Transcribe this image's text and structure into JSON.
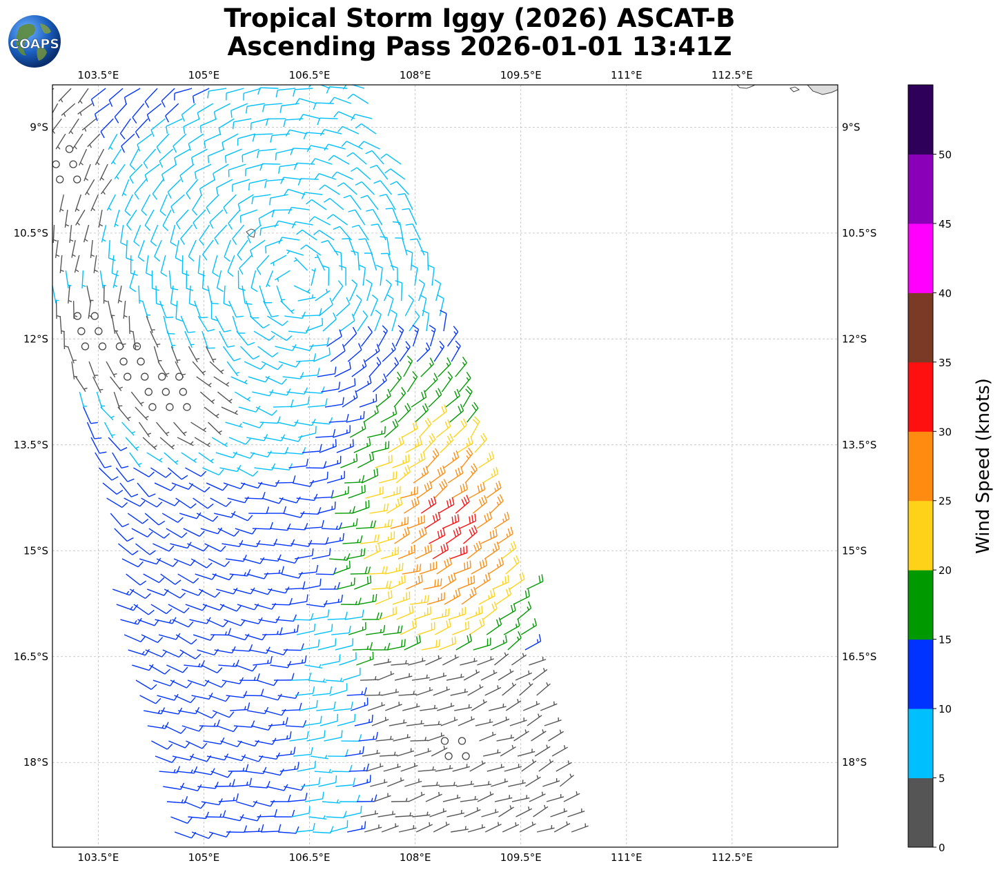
{
  "header": {
    "title_line1": "Tropical Storm Iggy (2026) ASCAT-B",
    "title_line2": "Ascending Pass 2026-01-01 13:41Z",
    "logo_text": "COAPS"
  },
  "chart_data": {
    "type": "wind-barbs",
    "title": "Tropical Storm Iggy (2026) ASCAT-B Ascending Pass 2026-01-01 13:41Z",
    "projection": "PlateCarree",
    "xlim_lon": [
      102.85,
      114.0
    ],
    "ylim_lat": [
      -19.2,
      -8.4
    ],
    "x_ticks": [
      103.5,
      105.0,
      106.5,
      108.0,
      109.5,
      111.0,
      112.5
    ],
    "x_tick_labels": [
      "103.5°E",
      "105°E",
      "106.5°E",
      "108°E",
      "109.5°E",
      "111°E",
      "112.5°E"
    ],
    "y_ticks": [
      -9.0,
      -10.5,
      -12.0,
      -13.5,
      -15.0,
      -16.5,
      -18.0
    ],
    "y_tick_labels": [
      "9°S",
      "10.5°S",
      "12°S",
      "13.5°S",
      "15°S",
      "16.5°S",
      "18°S"
    ],
    "grid": true,
    "storm_center_approx": {
      "lon": 106.3,
      "lat": -11.2
    },
    "swath_polygon_lonlat": [
      [
        102.85,
        -8.4
      ],
      [
        107.4,
        -8.4
      ],
      [
        108.5,
        -11.4
      ],
      [
        109.6,
        -15.6
      ],
      [
        110.3,
        -19.2
      ],
      [
        104.5,
        -19.2
      ],
      [
        103.8,
        -16.2
      ],
      [
        103.3,
        -13.2
      ],
      [
        102.85,
        -12.2
      ]
    ],
    "colorbar": {
      "label": "Wind Speed (knots)",
      "ticks": [
        0,
        5,
        10,
        15,
        20,
        25,
        30,
        35,
        40,
        45,
        50
      ],
      "tick_labels": [
        "0",
        "5",
        "10",
        "15",
        "20",
        "25",
        "30",
        "35",
        "40",
        "45",
        "50"
      ],
      "bins": [
        {
          "min": 0,
          "max": 5,
          "color": "#555555"
        },
        {
          "min": 5,
          "max": 10,
          "color": "#00bfff"
        },
        {
          "min": 10,
          "max": 15,
          "color": "#0033ff"
        },
        {
          "min": 15,
          "max": 20,
          "color": "#009900"
        },
        {
          "min": 20,
          "max": 25,
          "color": "#ffd21a"
        },
        {
          "min": 25,
          "max": 30,
          "color": "#ff8c10"
        },
        {
          "min": 30,
          "max": 35,
          "color": "#ff1010"
        },
        {
          "min": 35,
          "max": 40,
          "color": "#7a3a26"
        },
        {
          "min": 40,
          "max": 45,
          "color": "#ff00ff"
        },
        {
          "min": 45,
          "max": 50,
          "color": "#8a00b8"
        },
        {
          "min": 50,
          "max": 55,
          "color": "#2e0059"
        }
      ]
    },
    "wind_field": {
      "model": "cyclonic-vortex",
      "center_lon": 106.3,
      "center_lat": -11.2,
      "peak_speed_knots": 29,
      "peak_location": {
        "lon": 108.5,
        "lat": -14.8
      },
      "calm_regions": [
        {
          "lon": 103.0,
          "lat": -9.6
        },
        {
          "lon": 103.4,
          "lat": -11.9
        },
        {
          "lon": 108.6,
          "lat": -17.8
        },
        {
          "lon": 104.5,
          "lat": -12.8
        }
      ]
    }
  }
}
